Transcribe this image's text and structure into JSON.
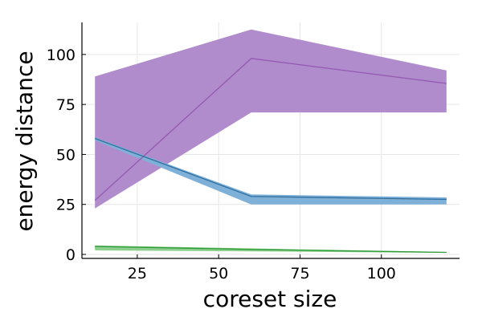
{
  "chart_data": {
    "type": "line",
    "title": "",
    "xlabel": "coreset size",
    "ylabel": "energy distance",
    "xlim": [
      8,
      124
    ],
    "ylim": [
      -2,
      116
    ],
    "xticks": [
      25,
      50,
      75,
      100
    ],
    "yticks": [
      0,
      25,
      50,
      75,
      100
    ],
    "grid": true,
    "legend": "none",
    "series": [
      {
        "color": "#9558b2",
        "fill_color": "#b08ccc",
        "x": [
          12,
          60,
          120
        ],
        "mean": [
          27,
          98,
          85.5
        ],
        "lower": [
          23,
          71,
          71
        ],
        "upper": [
          89,
          112.5,
          92
        ]
      },
      {
        "color": "#2f6fa0",
        "fill_color": "#7fb0d8",
        "x": [
          12,
          60,
          120
        ],
        "mean": [
          58,
          29,
          27.5
        ],
        "lower": [
          57,
          25,
          25
        ],
        "upper": [
          58.5,
          30,
          28.5
        ]
      },
      {
        "color": "#2e9a3a",
        "fill_color": "#8dd08d",
        "x": [
          12,
          60,
          120
        ],
        "mean": [
          4,
          2.5,
          1
        ],
        "lower": [
          2,
          1.5,
          0.8
        ],
        "upper": [
          4.5,
          3,
          1.2
        ]
      }
    ]
  }
}
